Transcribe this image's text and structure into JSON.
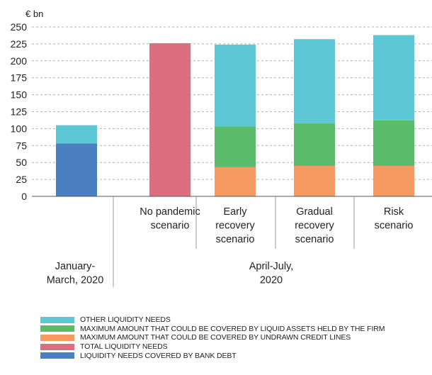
{
  "chart_data": {
    "type": "bar",
    "stacked": true,
    "unit_label": "€ bn",
    "y_ticks": [
      "250",
      "225",
      "200",
      "175",
      "150",
      "125",
      "100",
      "75",
      "50",
      "25",
      "0"
    ],
    "ylim": [
      0,
      250
    ],
    "grid": "horizontal dashed",
    "categories": [
      {
        "label": "",
        "group": "January-March, 2020"
      },
      {
        "label": "No pandemic scenario",
        "group": "April-July, 2020"
      },
      {
        "label": "Early recovery scenario",
        "group": "April-July, 2020"
      },
      {
        "label": "Gradual recovery scenario",
        "group": "April-July, 2020"
      },
      {
        "label": "Risk scenario",
        "group": "April-July, 2020"
      }
    ],
    "category_label_lines": [
      [],
      [
        "No pandemic",
        "scenario"
      ],
      [
        "Early",
        "recovery",
        "scenario"
      ],
      [
        "Gradual",
        "recovery",
        "scenario"
      ],
      [
        "Risk",
        "scenario"
      ]
    ],
    "groups": [
      {
        "label_lines": [
          "January-",
          "March, 2020"
        ]
      },
      {
        "label_lines": [
          "April-July,",
          "2020"
        ]
      }
    ],
    "series": [
      {
        "name": "LIQUIDITY NEEDS COVERED BY BANK DEBT",
        "color": "#4a7fc1",
        "values": [
          78,
          0,
          0,
          0,
          0
        ]
      },
      {
        "name": "TOTAL LIQUIDITY NEEDS",
        "color": "#dd6e7f",
        "values": [
          0,
          226,
          0,
          0,
          0
        ]
      },
      {
        "name": "MAXIMUM AMOUNT THAT COULD BE COVERED BY UNDRAWN CREDIT LINES",
        "color": "#f59b62",
        "values": [
          0,
          0,
          43,
          45,
          45
        ]
      },
      {
        "name": "MAXIMUM AMOUNT THAT COULD BE COVERED BY LIQUID ASSETS HELD BY THE FIRM",
        "color": "#5abc6b",
        "values": [
          0,
          0,
          60,
          63,
          67
        ]
      },
      {
        "name": "OTHER LIQUIDITY NEEDS",
        "color": "#5ec7d5",
        "values": [
          27,
          0,
          121,
          124,
          126
        ]
      }
    ],
    "legend": {
      "placement": "bottom",
      "order": [
        "OTHER LIQUIDITY NEEDS",
        "MAXIMUM AMOUNT THAT COULD BE COVERED BY LIQUID ASSETS HELD BY THE FIRM",
        "MAXIMUM AMOUNT THAT COULD BE COVERED BY UNDRAWN CREDIT LINES",
        "TOTAL LIQUIDITY NEEDS",
        "LIQUIDITY NEEDS COVERED BY BANK DEBT"
      ]
    }
  }
}
